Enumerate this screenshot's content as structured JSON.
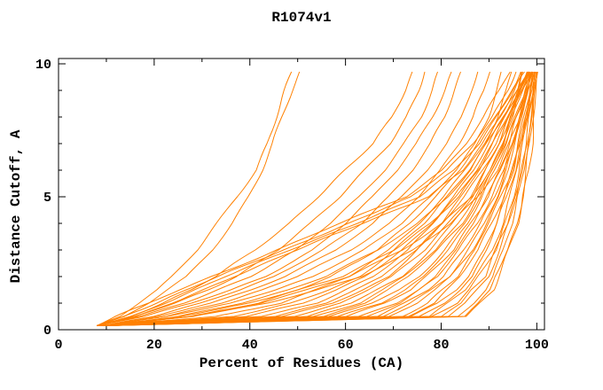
{
  "chart_data": {
    "type": "line",
    "title": "R1074v1",
    "xlabel": "Percent of Residues (CA)",
    "ylabel": "Distance Cutoff, A",
    "xlim": [
      0,
      101.6
    ],
    "ylim": [
      0,
      10.2
    ],
    "x_major_ticks": [
      0,
      20,
      40,
      60,
      80,
      100
    ],
    "x_minor_ticks": [
      10,
      30,
      50,
      70,
      90
    ],
    "y_major_ticks": [
      0,
      5,
      10
    ],
    "y_minor_ticks": [
      1,
      2,
      3,
      4,
      6,
      7,
      8,
      9
    ],
    "grid": false,
    "legend": false,
    "line_color": "#ff8000",
    "axis_color": "#000000",
    "background_color": "#ffffff",
    "cutoffs": [
      0.15,
      0.5,
      1,
      1.5,
      2,
      3,
      4,
      5,
      6,
      7,
      8,
      9,
      9.7
    ],
    "series_x": [
      [
        8,
        13,
        17,
        21,
        24,
        29,
        33,
        37,
        41,
        43.5,
        45.5,
        47.5,
        49
      ],
      [
        8,
        14,
        19,
        23,
        27,
        32,
        36,
        39.5,
        42.5,
        45,
        47,
        49,
        50.5
      ],
      [
        8,
        15,
        22,
        28,
        33,
        41,
        48,
        54,
        60,
        66,
        70,
        72.5,
        74
      ],
      [
        8,
        16,
        24,
        31,
        37,
        46,
        53,
        59,
        64,
        69,
        72.5,
        75,
        76.5
      ],
      [
        8,
        17,
        26,
        33,
        40,
        50,
        57,
        63,
        68,
        72,
        75.5,
        78,
        79.5
      ],
      [
        8,
        18,
        28,
        36,
        43,
        53,
        60,
        66,
        71,
        75,
        78,
        80.5,
        82
      ],
      [
        9,
        20,
        30,
        38,
        45,
        55,
        63,
        69,
        74,
        78,
        81,
        83,
        84.5
      ],
      [
        9,
        21,
        32,
        40,
        47,
        58,
        66,
        72,
        77,
        81,
        84,
        86,
        87.5
      ],
      [
        9,
        22,
        34,
        43,
        50,
        61,
        69,
        75,
        80,
        84,
        87,
        89,
        90
      ],
      [
        9,
        23,
        36,
        45,
        53,
        64,
        72,
        78,
        83,
        87,
        89.5,
        91.5,
        92.5
      ],
      [
        10,
        25,
        38,
        48,
        56,
        67,
        75,
        81,
        86,
        89.5,
        92,
        94,
        95
      ],
      [
        10,
        26,
        40,
        50,
        59,
        70,
        78,
        84,
        88,
        91.5,
        94,
        95.5,
        96.5
      ],
      [
        10,
        27,
        42,
        52,
        61,
        72,
        80,
        86,
        90,
        93,
        95,
        96.5,
        97.5
      ],
      [
        10,
        28,
        44,
        54,
        63,
        74,
        82,
        88,
        92,
        94.5,
        96.5,
        98,
        98.5
      ],
      [
        8,
        12,
        19,
        25.5,
        32,
        45.5,
        59,
        72.5,
        80,
        85,
        89,
        92.5,
        94.5
      ],
      [
        8,
        13.5,
        20.5,
        27,
        33.5,
        47,
        60.5,
        74,
        81.5,
        86.5,
        90.5,
        93.5,
        95.5
      ],
      [
        8,
        15,
        22,
        28.5,
        35,
        48.5,
        62,
        75.5,
        83,
        88,
        91.5,
        94.5,
        96.5
      ],
      [
        8,
        16.5,
        23.5,
        30,
        36.5,
        50,
        63.5,
        77,
        84.5,
        89,
        92.5,
        95.5,
        97
      ]
    ],
    "bundle": {
      "count": 30,
      "worst_x": [
        8,
        28,
        42,
        50,
        57,
        66,
        73,
        79,
        84,
        88,
        91.5,
        95,
        97.5
      ],
      "best_x": [
        10,
        86,
        89,
        91,
        92.5,
        94.5,
        96,
        97,
        98,
        98.7,
        99.2,
        99.6,
        100
      ]
    }
  }
}
